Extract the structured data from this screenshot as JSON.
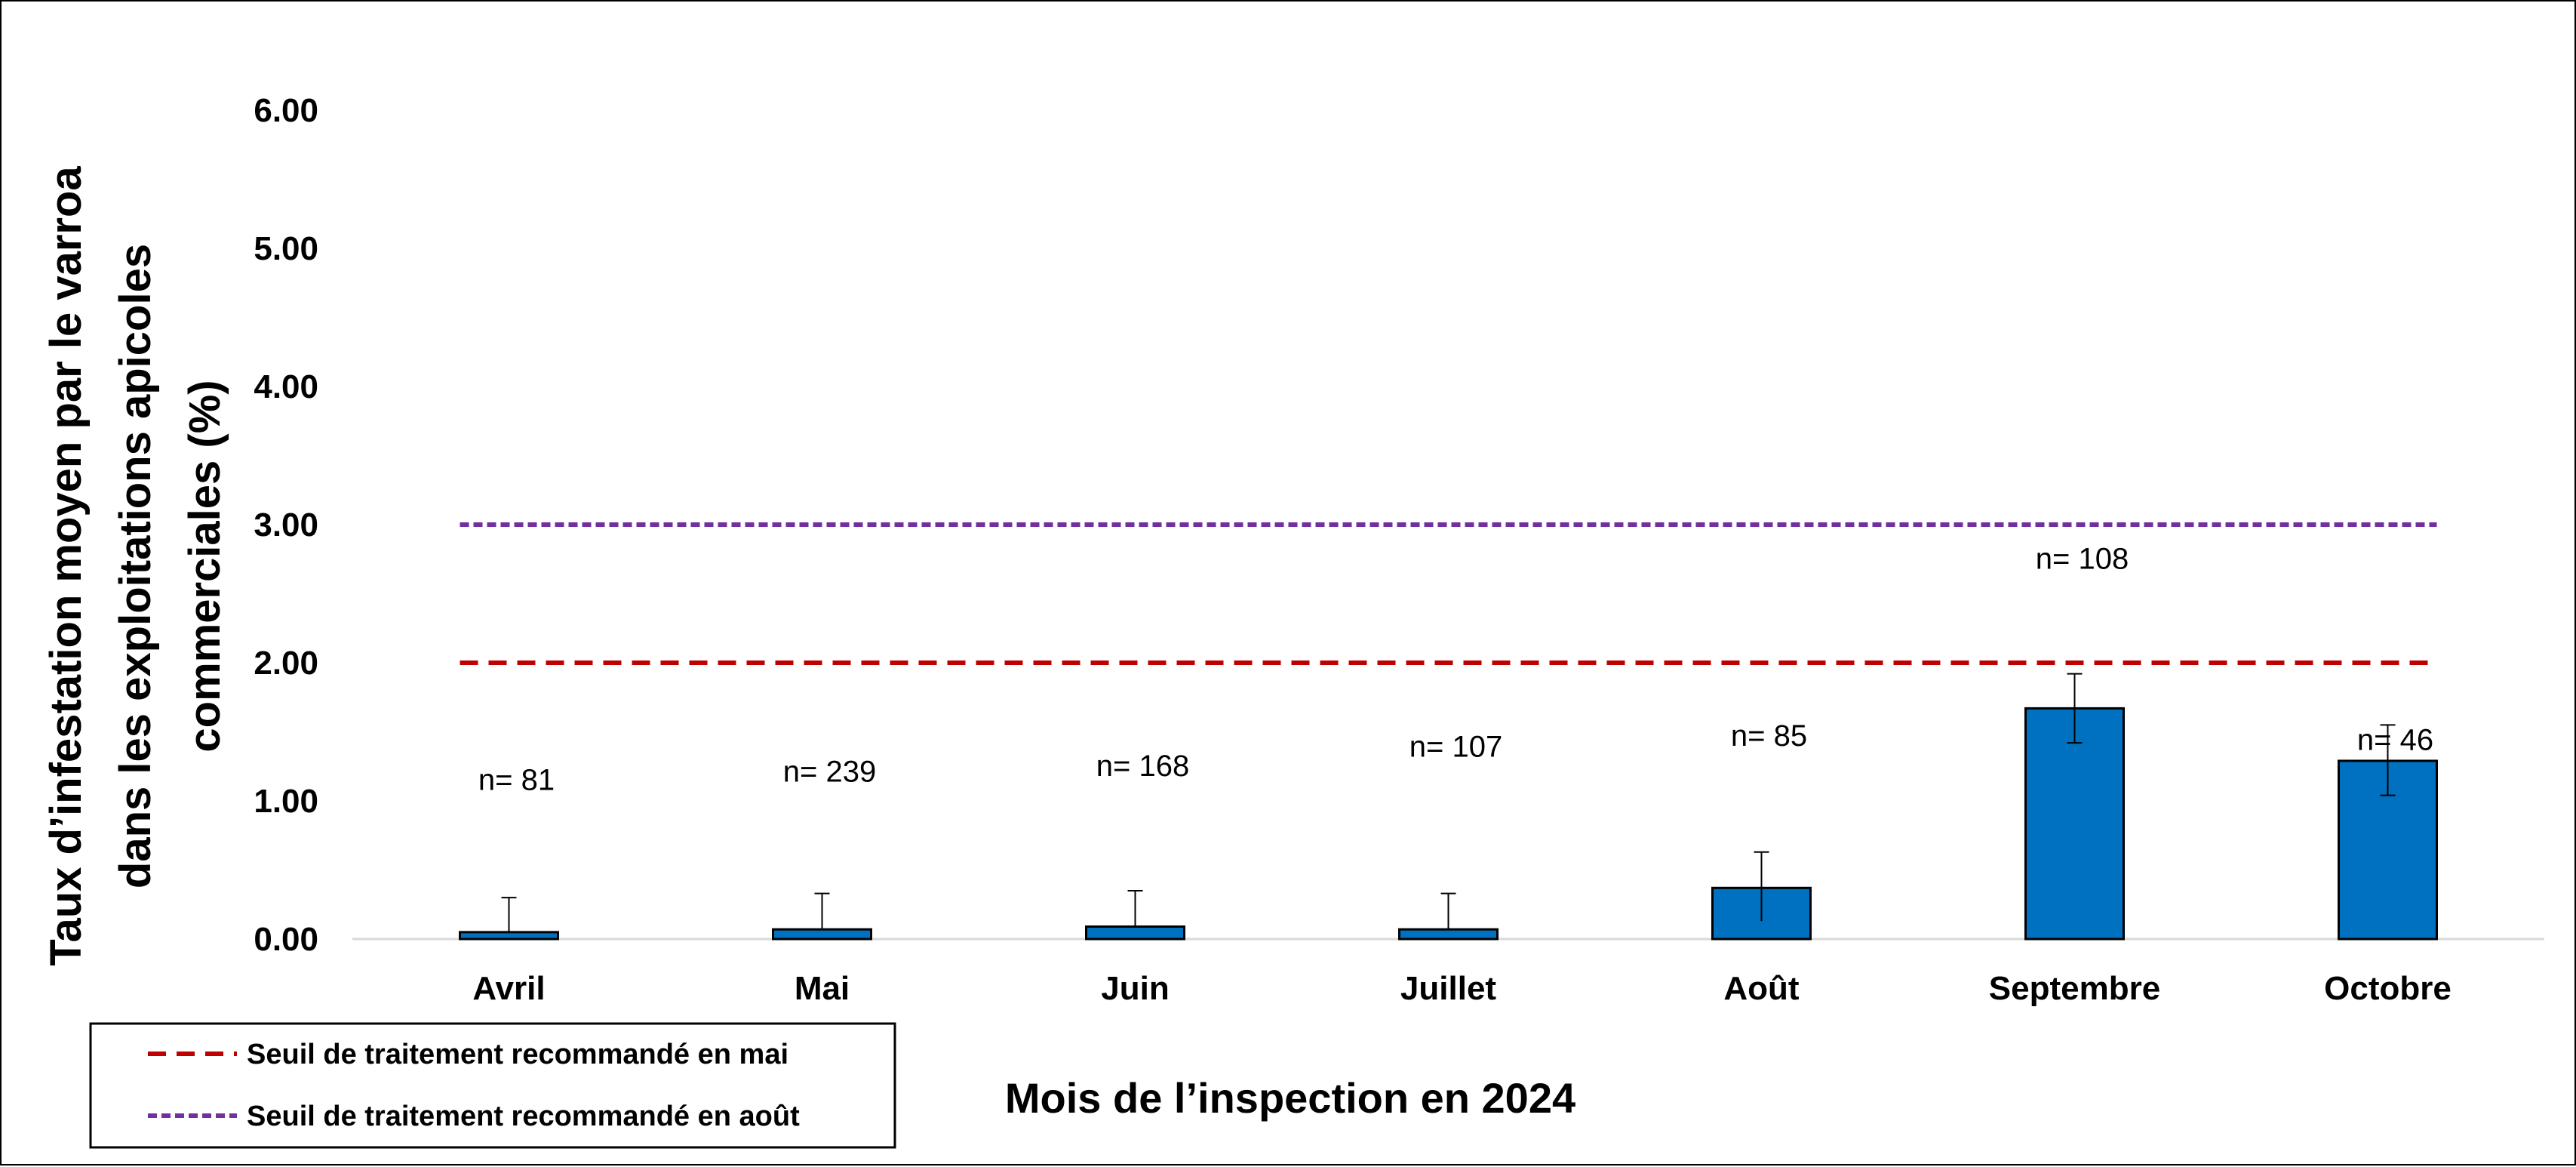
{
  "chart_data": {
    "type": "bar",
    "categories": [
      "Avril",
      "Mai",
      "Juin",
      "Juillet",
      "Août",
      "Septembre",
      "Octobre"
    ],
    "values": [
      0.05,
      0.07,
      0.09,
      0.07,
      0.37,
      1.67,
      1.29
    ],
    "error_upper": [
      0.3,
      0.33,
      0.35,
      0.33,
      0.63,
      1.92,
      1.55
    ],
    "error_lower": [
      0.05,
      0.07,
      0.09,
      0.07,
      0.13,
      1.42,
      1.04
    ],
    "n_labels": [
      "n= 81",
      "n= 239",
      "n= 168",
      "n= 107",
      "n= 85",
      "n= 108",
      "n= 46"
    ],
    "n_label_y": [
      1.08,
      1.14,
      1.18,
      1.32,
      1.4,
      2.68,
      1.37
    ],
    "y_ticks": [
      "0.00",
      "1.00",
      "2.00",
      "3.00",
      "4.00",
      "5.00",
      "6.00"
    ],
    "ylim": [
      0,
      6
    ],
    "ylabel_lines": [
      "Taux d’infestation moyen par le varroa",
      "dans les exploitations apicoles",
      "commerciales (%)"
    ],
    "xlabel": "Mois de l’inspection en 2024",
    "bar_color": "#0070C0",
    "thresholds": [
      {
        "name": "Seuil de traitement recommandé en mai",
        "value": 2.0,
        "color": "#C00000",
        "style": "dashed"
      },
      {
        "name": "Seuil de traitement recommandé en août",
        "value": 3.0,
        "color": "#7030A0",
        "style": "dotted"
      }
    ],
    "grid": false,
    "legend_position": "bottom-left"
  }
}
